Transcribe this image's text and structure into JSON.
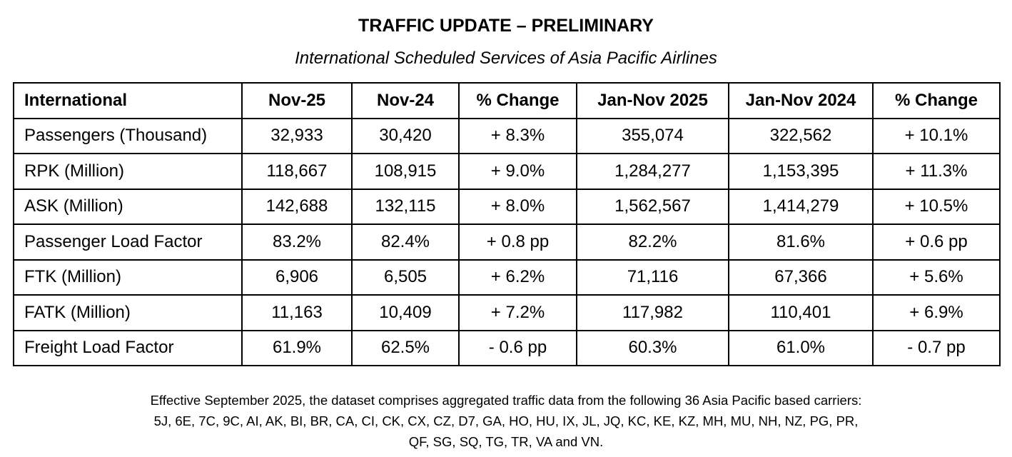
{
  "title": "TRAFFIC UPDATE – PRELIMINARY",
  "subtitle": "International Scheduled Services of Asia Pacific Airlines",
  "table": {
    "headers": [
      "International",
      "Nov-25",
      "Nov-24",
      "% Change",
      "Jan-Nov 2025",
      "Jan-Nov 2024",
      "% Change"
    ],
    "rows": [
      [
        "Passengers (Thousand)",
        "32,933",
        "30,420",
        "+ 8.3%",
        "355,074",
        "322,562",
        "+ 10.1%"
      ],
      [
        "RPK (Million)",
        "118,667",
        "108,915",
        "+ 9.0%",
        "1,284,277",
        "1,153,395",
        "+ 11.3%"
      ],
      [
        "ASK (Million)",
        "142,688",
        "132,115",
        "+ 8.0%",
        "1,562,567",
        "1,414,279",
        "+ 10.5%"
      ],
      [
        "Passenger Load Factor",
        "83.2%",
        "82.4%",
        "+ 0.8 pp",
        "82.2%",
        "81.6%",
        "+ 0.6 pp"
      ],
      [
        "FTK (Million)",
        "6,906",
        "6,505",
        "+ 6.2%",
        "71,116",
        "67,366",
        "+ 5.6%"
      ],
      [
        "FATK (Million)",
        "11,163",
        "10,409",
        "+ 7.2%",
        "117,982",
        "110,401",
        "+ 6.9%"
      ],
      [
        "Freight Load Factor",
        "61.9%",
        "62.5%",
        "- 0.6 pp",
        "60.3%",
        "61.0%",
        "- 0.7 pp"
      ]
    ]
  },
  "footnote": [
    "Effective September 2025, the dataset comprises aggregated traffic data from the following 36 Asia Pacific based carriers:",
    "5J, 6E, 7C, 9C, AI, AK, BI, BR, CA, CI, CK, CX, CZ, D7, GA, HO, HU, IX, JL, JQ, KC, KE, KZ, MH, MU, NH, NZ, PG, PR,",
    "QF, SG, SQ, TG, TR, VA and VN."
  ]
}
